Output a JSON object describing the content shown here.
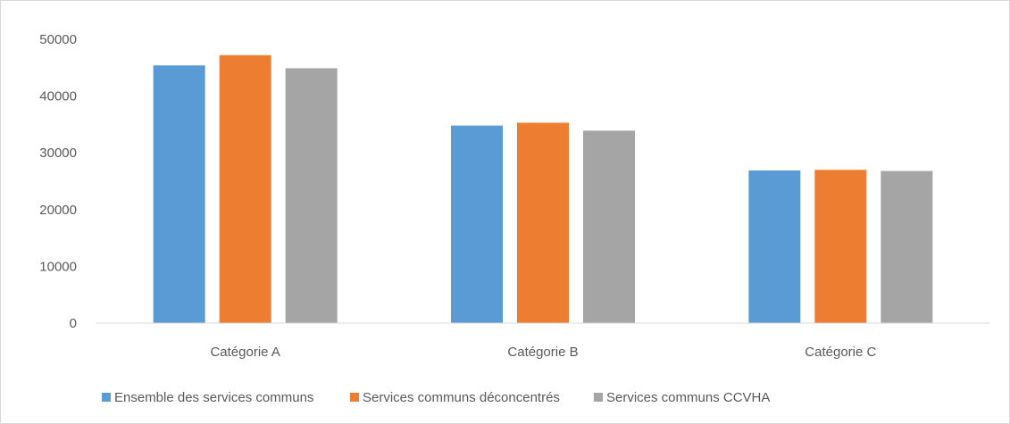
{
  "chart_data": {
    "type": "bar",
    "title": "",
    "xlabel": "",
    "ylabel": "",
    "categories": [
      "Catégorie A",
      "Catégorie B",
      "Catégorie C"
    ],
    "series": [
      {
        "name": "Ensemble des services communs",
        "color": "#5b9bd5",
        "values": [
          45400,
          34800,
          26900
        ]
      },
      {
        "name": "Services communs déconcentrés",
        "color": "#ed7d31",
        "values": [
          47200,
          35300,
          27000
        ]
      },
      {
        "name": "Services communs CCVHA",
        "color": "#a5a5a5",
        "values": [
          44900,
          33900,
          26800
        ]
      }
    ],
    "ylim": [
      0,
      50000
    ],
    "yticks": [
      "0",
      "10000",
      "20000",
      "30000",
      "40000",
      "50000"
    ],
    "grid": false,
    "legend_position": "bottom"
  }
}
